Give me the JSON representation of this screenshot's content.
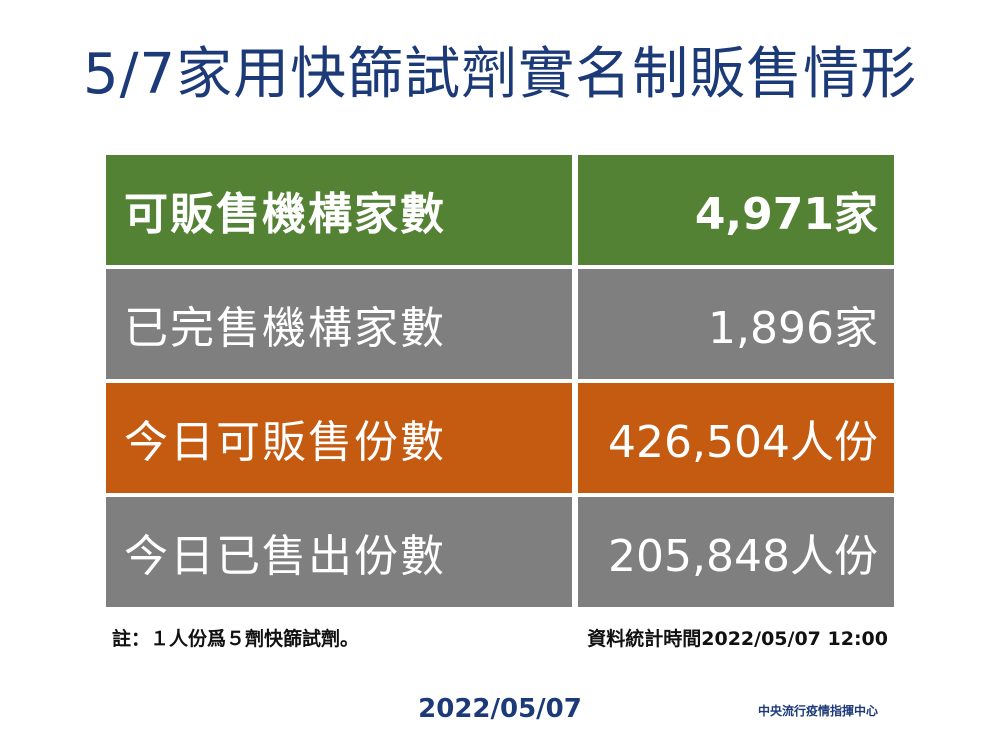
{
  "title": "5/7家用快篩試劑實名制販售情形",
  "rows": [
    {
      "label": "可販售機構家數",
      "value": "4,971家",
      "color": "#548235"
    },
    {
      "label": "已完售機構家數",
      "value": "1,896家",
      "color": "#7f7f7f"
    },
    {
      "label": "今日可販售份數",
      "value": "426,504人份",
      "color": "#c55a11"
    },
    {
      "label": "今日已售出份數",
      "value": "205,848人份",
      "color": "#7f7f7f"
    }
  ],
  "note_left": "註：１人份爲５劑快篩試劑。",
  "note_right": "資料統計時間2022/05/07  12:00",
  "footer": {
    "date": "2022/05/07",
    "organization": "中央流行疫情指揮中心"
  },
  "colors": {
    "title": "#1d3a78",
    "green": "#548235",
    "grey": "#7f7f7f",
    "orange": "#c55a11"
  }
}
